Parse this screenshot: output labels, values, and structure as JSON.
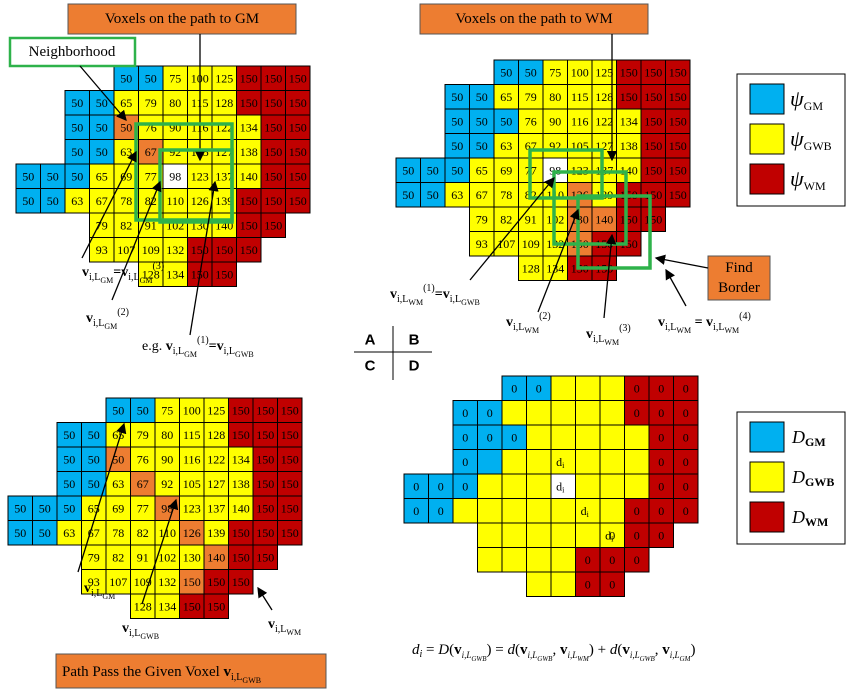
{
  "colors": {
    "gm": "#00B0F0",
    "gwb": "#FFFF00",
    "wm": "#C00000",
    "path": "#ED7D31",
    "empty": "#FFFFFF",
    "green": "#2EB24A"
  },
  "grids": {
    "A": [
      [
        "",
        "",
        "50",
        "50",
        "75",
        "100",
        "125",
        "150",
        "150",
        "150",
        ""
      ],
      [
        "",
        "50",
        "50",
        "65",
        "79",
        "80",
        "115",
        "128",
        "150",
        "150",
        "150"
      ],
      [
        "",
        "50",
        "50",
        "50",
        "76",
        "90",
        "116",
        "122",
        "134",
        "150",
        "150"
      ],
      [
        "",
        "50",
        "50",
        "63",
        "67",
        "92",
        "105",
        "127",
        "138",
        "150",
        "150"
      ],
      [
        "50",
        "50",
        "50",
        "65",
        "69",
        "77",
        "98",
        "123",
        "137",
        "140",
        "150",
        "150"
      ],
      [
        "50",
        "50",
        "63",
        "67",
        "78",
        "82",
        "110",
        "126",
        "139",
        "150",
        "150",
        "150"
      ],
      [
        "",
        "",
        "",
        "79",
        "82",
        "91",
        "102",
        "130",
        "140",
        "150",
        "150",
        ""
      ],
      [
        "",
        "",
        "",
        "93",
        "107",
        "109",
        "132",
        "150",
        "150",
        "150",
        "",
        ""
      ],
      [
        "",
        "",
        "",
        "",
        "128",
        "134",
        "150",
        "150",
        "",
        "",
        ""
      ]
    ]
  },
  "panelA": {
    "title": "Voxels on the path to GM",
    "neighborhood": "Neighborhood",
    "label1": "v",
    "label1_sub": "i,L",
    "label1_subsub": "GM",
    "label1_eq": "=v",
    "label1_sup": "(3)",
    "label2_sup": "(2)",
    "eg": "e.g.",
    "eg_sup": "(1)",
    "eg_rhs_sub": "GWB"
  },
  "panelB": {
    "title": "Voxels on the path to WM",
    "find_border": "Find Border",
    "sup1": "(1)",
    "sup2": "(2)",
    "sup3": "(3)",
    "sup4": "(4)"
  },
  "panelC": {
    "caption": "Path Pass the Given Voxel"
  },
  "legendTop": [
    "ψ",
    "ψ",
    "ψ"
  ],
  "legendTopSubs": [
    "GM",
    "GWB",
    "WM"
  ],
  "legendBottom": [
    "D",
    "D",
    "D"
  ],
  "legendBottomSubs": [
    "GM",
    "GWB",
    "WM"
  ],
  "quadrants": [
    "A",
    "B",
    "C",
    "D"
  ],
  "panelD": {
    "di": "d",
    "di_sub": "i",
    "formula": "dᵢ = D(vᵢ,L_GWB) = d(vᵢ,L_GWB , vᵢ,L_WM) + d(vᵢ,L_GWB , vᵢ,L_GM)"
  }
}
